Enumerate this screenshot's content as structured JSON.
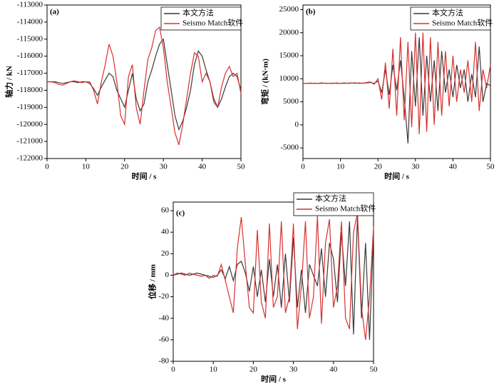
{
  "chart_data": [
    {
      "type": "line",
      "label": "(a)",
      "xlabel": "时间 / s",
      "ylabel": "轴力 / kN",
      "legend": "upper right",
      "x": [
        0,
        1,
        2,
        3,
        4,
        5,
        6,
        7,
        8,
        9,
        10,
        11,
        12,
        13,
        14,
        15,
        16,
        17,
        18,
        19,
        20,
        21,
        22,
        23,
        24,
        25,
        26,
        27,
        28,
        29,
        30,
        31,
        32,
        33,
        34,
        35,
        36,
        37,
        38,
        39,
        40,
        41,
        42,
        43,
        44,
        45,
        46,
        47,
        48,
        49,
        50
      ],
      "xlim": [
        0,
        50
      ],
      "xticks": [
        0,
        10,
        20,
        30,
        40,
        50
      ],
      "ylim": [
        -122000,
        -113000
      ],
      "yticks": [
        -122000,
        -121000,
        -120000,
        -119000,
        -118000,
        -117000,
        -116000,
        -115000,
        -114000,
        -113000
      ],
      "series": [
        {
          "name": "本文方法",
          "color": "#3a3a3a",
          "values": [
            -117500,
            -117500,
            -117500,
            -117550,
            -117600,
            -117550,
            -117500,
            -117500,
            -117550,
            -117500,
            -117500,
            -117600,
            -117900,
            -118300,
            -117800,
            -117400,
            -117000,
            -117200,
            -118000,
            -118500,
            -119000,
            -118000,
            -117000,
            -118500,
            -119200,
            -118800,
            -117500,
            -116800,
            -116000,
            -115300,
            -115000,
            -116500,
            -118000,
            -119500,
            -120300,
            -119800,
            -119000,
            -118000,
            -116500,
            -115700,
            -116000,
            -116800,
            -117500,
            -118500,
            -119000,
            -118500,
            -117800,
            -117200,
            -117000,
            -117200,
            -118000
          ]
        },
        {
          "name": "Seismo Match软件",
          "color": "#d93030",
          "values": [
            -117500,
            -117500,
            -117550,
            -117650,
            -117700,
            -117600,
            -117500,
            -117450,
            -117500,
            -117550,
            -117500,
            -117500,
            -118000,
            -118800,
            -117500,
            -116500,
            -115300,
            -116000,
            -117500,
            -119500,
            -120000,
            -117200,
            -116500,
            -119000,
            -120000,
            -118000,
            -116200,
            -115500,
            -114500,
            -114300,
            -115500,
            -117500,
            -119000,
            -120500,
            -121200,
            -120000,
            -118500,
            -117000,
            -115800,
            -116000,
            -117500,
            -117000,
            -117500,
            -118700,
            -119000,
            -117800,
            -117000,
            -116600,
            -117200,
            -117000,
            -118200
          ]
        }
      ]
    },
    {
      "type": "line",
      "label": "(b)",
      "xlabel": "时间 / s",
      "ylabel": "弯矩 / (kN·m)",
      "legend": "upper right",
      "x": [
        0,
        1,
        2,
        3,
        4,
        5,
        6,
        7,
        8,
        9,
        10,
        11,
        12,
        13,
        14,
        15,
        16,
        17,
        18,
        19,
        20,
        21,
        22,
        23,
        24,
        25,
        26,
        27,
        28,
        29,
        30,
        31,
        32,
        33,
        34,
        35,
        36,
        37,
        38,
        39,
        40,
        41,
        42,
        43,
        44,
        45,
        46,
        47,
        48,
        49,
        50
      ],
      "xlim": [
        0,
        50
      ],
      "xticks": [
        0,
        10,
        20,
        30,
        40,
        50
      ],
      "ylim": [
        -7300,
        26000
      ],
      "yticks": [
        -5000,
        0,
        5000,
        10000,
        15000,
        20000,
        25000
      ],
      "series": [
        {
          "name": "本文方法",
          "color": "#3a3a3a",
          "values": [
            9000,
            9000,
            9050,
            9000,
            9000,
            9100,
            9000,
            9000,
            9050,
            9000,
            9000,
            9100,
            9000,
            9050,
            9100,
            9000,
            9050,
            9100,
            9200,
            9000,
            9500,
            7000,
            12000,
            6500,
            13000,
            7500,
            14000,
            6000,
            -4000,
            16000,
            4000,
            19000,
            2000,
            15000,
            5000,
            14000,
            3000,
            16000,
            7000,
            12000,
            6000,
            13000,
            8000,
            12000,
            5000,
            11000,
            6000,
            17000,
            5000,
            9000,
            8500
          ]
        },
        {
          "name": "Seismo Match软件",
          "color": "#d93030",
          "values": [
            9000,
            9000,
            9000,
            9050,
            9000,
            9000,
            9050,
            9000,
            9000,
            9100,
            9000,
            9000,
            9050,
            9100,
            9000,
            9100,
            9000,
            9200,
            9300,
            8800,
            10000,
            5500,
            13500,
            3500,
            16500,
            2000,
            19000,
            1000,
            18000,
            -500,
            20000,
            -2000,
            20000,
            -1500,
            19000,
            0,
            18000,
            2000,
            16000,
            4000,
            15000,
            5000,
            12000,
            7000,
            14000,
            5000,
            18000,
            3000,
            12000,
            8000,
            13000
          ]
        }
      ]
    },
    {
      "type": "line",
      "label": "(c)",
      "xlabel": "时间 / s",
      "ylabel": "位移 / mm",
      "legend": "upper right",
      "x": [
        0,
        1,
        2,
        3,
        4,
        5,
        6,
        7,
        8,
        9,
        10,
        11,
        12,
        13,
        14,
        15,
        16,
        17,
        18,
        19,
        20,
        21,
        22,
        23,
        24,
        25,
        26,
        27,
        28,
        29,
        30,
        31,
        32,
        33,
        34,
        35,
        36,
        37,
        38,
        39,
        40,
        41,
        42,
        43,
        44,
        45,
        46,
        47,
        48,
        49,
        50
      ],
      "xlim": [
        0,
        50
      ],
      "xticks": [
        0,
        10,
        20,
        30,
        40,
        50
      ],
      "ylim": [
        -80,
        68
      ],
      "yticks": [
        -80,
        -60,
        -40,
        -20,
        0,
        20,
        40,
        60
      ],
      "series": [
        {
          "name": "本文方法",
          "color": "#3a3a3a",
          "values": [
            0,
            1,
            2,
            1,
            0,
            1,
            2,
            1,
            0,
            -1,
            -2,
            0,
            5,
            -3,
            8,
            -5,
            10,
            13,
            2,
            -15,
            8,
            -20,
            5,
            -25,
            15,
            -20,
            10,
            -30,
            20,
            -25,
            35,
            -30,
            5,
            -35,
            10,
            0,
            -10,
            25,
            -20,
            30,
            15,
            -25,
            40,
            -10,
            50,
            -55,
            55,
            -40,
            30,
            -60,
            40
          ]
        },
        {
          "name": "Seismo Match软件",
          "color": "#d93030",
          "values": [
            0,
            2,
            1,
            0,
            2,
            1,
            0,
            -1,
            0,
            -3,
            0,
            -1,
            10,
            -5,
            -20,
            -35,
            25,
            54,
            10,
            -30,
            -35,
            42,
            -25,
            -40,
            48,
            -30,
            -20,
            50,
            -35,
            -20,
            48,
            -50,
            -10,
            50,
            -40,
            -20,
            55,
            -45,
            30,
            52,
            -30,
            -10,
            50,
            -40,
            -50,
            40,
            58,
            -30,
            -60,
            -20,
            45
          ]
        }
      ]
    }
  ]
}
